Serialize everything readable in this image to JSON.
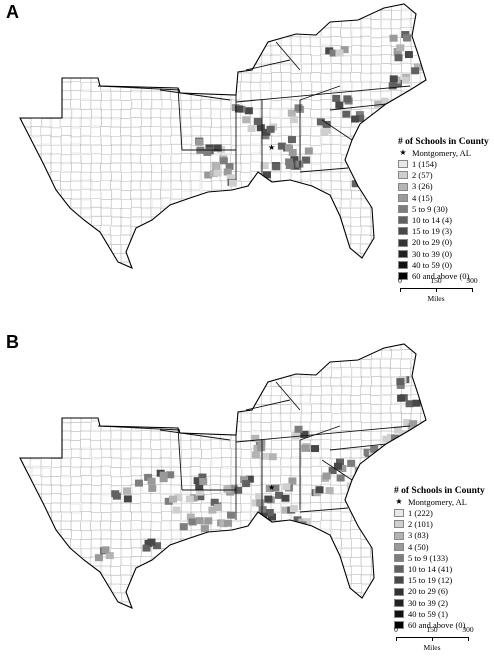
{
  "panels": [
    {
      "letter": "A",
      "legend": {
        "title": "# of Schools in County",
        "star_label": "Montgomery, AL",
        "classes": [
          {
            "label": "1 (154)",
            "color": "#e8e8e8"
          },
          {
            "label": "2 (57)",
            "color": "#cfcfcf"
          },
          {
            "label": "3 (26)",
            "color": "#b4b4b4"
          },
          {
            "label": "4 (15)",
            "color": "#9a9a9a"
          },
          {
            "label": "5 to 9 (30)",
            "color": "#7d7d7d"
          },
          {
            "label": "10 to 14 (4)",
            "color": "#616161"
          },
          {
            "label": "15 to 19 (3)",
            "color": "#484848"
          },
          {
            "label": "20 to 29 (0)",
            "color": "#333333"
          },
          {
            "label": "30 to 39 (0)",
            "color": "#222222"
          },
          {
            "label": "40 to 59 (0)",
            "color": "#111111"
          },
          {
            "label": "60 and above (0)",
            "color": "#000000"
          }
        ],
        "scale": {
          "ticks": [
            "0",
            "150",
            "300"
          ],
          "unit": "Miles"
        }
      }
    },
    {
      "letter": "B",
      "legend": {
        "title": "# of Schools in County",
        "star_label": "Montgomery, AL",
        "classes": [
          {
            "label": "1 (222)",
            "color": "#e8e8e8"
          },
          {
            "label": "2 (101)",
            "color": "#cfcfcf"
          },
          {
            "label": "3 (83)",
            "color": "#b4b4b4"
          },
          {
            "label": "4 (50)",
            "color": "#9a9a9a"
          },
          {
            "label": "5 to 9 (133)",
            "color": "#7d7d7d"
          },
          {
            "label": "10 to 14 (41)",
            "color": "#616161"
          },
          {
            "label": "15 to 19 (12)",
            "color": "#484848"
          },
          {
            "label": "20 to 29 (6)",
            "color": "#333333"
          },
          {
            "label": "30 to 39 (2)",
            "color": "#222222"
          },
          {
            "label": "40 to 59 (1)",
            "color": "#111111"
          },
          {
            "label": "60 and above (0)",
            "color": "#000000"
          }
        ],
        "scale": {
          "ticks": [
            "0",
            "150",
            "300"
          ],
          "unit": "Miles"
        }
      }
    }
  ]
}
